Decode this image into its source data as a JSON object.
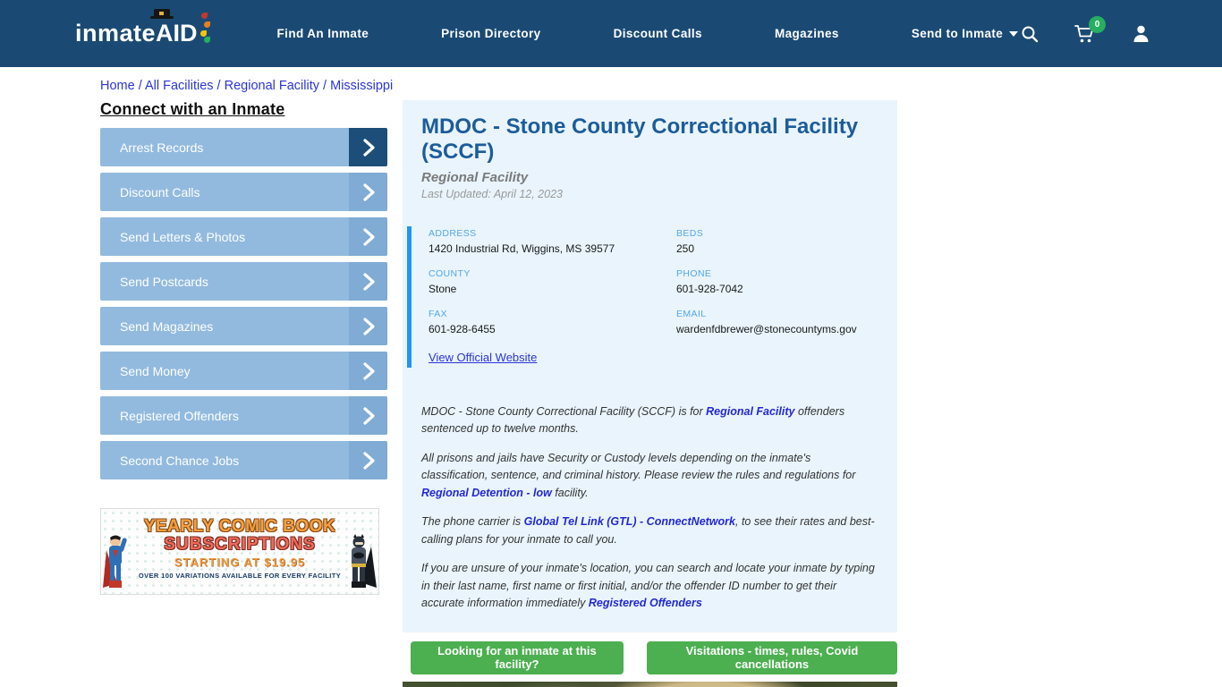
{
  "nav": {
    "logo": {
      "text_main": "inmate",
      "text_accent": "AID"
    },
    "items": [
      {
        "label": "Find An Inmate"
      },
      {
        "label": "Prison Directory"
      },
      {
        "label": "Discount Calls"
      },
      {
        "label": "Magazines"
      }
    ],
    "dropdown": {
      "label": "Send to Inmate"
    },
    "cart_count": "0",
    "icons": [
      "search-icon",
      "cart-icon",
      "user-icon"
    ],
    "colors": {
      "navbar_bg": "#1a4a73",
      "badge_green": "#27ae60"
    }
  },
  "breadcrumb": {
    "separator": "/",
    "items": [
      "Home",
      "All Facilities",
      "Regional Facility",
      "Mississippi"
    ]
  },
  "sidebar": {
    "heading": "Connect with an Inmate",
    "buttons": [
      "Arrest Records",
      "Discount Calls",
      "Send Letters & Photos",
      "Send Postcards",
      "Send Magazines",
      "Send Money",
      "Registered Offenders",
      "Second Chance Jobs"
    ],
    "button_colors": {
      "body": "#92bade",
      "chevron": "#7fabd4",
      "chevron_first": "#1d4e79"
    },
    "ad": {
      "line1": "YEARLY COMIC BOOK",
      "line2": "SUBSCRIPTIONS",
      "line3": "STARTING AT $19.95",
      "line4": "OVER 100 VARIATIONS AVAILABLE FOR EVERY FACILITY"
    }
  },
  "facility": {
    "title": "MDOC - Stone County Correctional Facility (SCCF)",
    "type": "Regional Facility",
    "last_updated": "Last Updated: April 12, 2023",
    "details": [
      {
        "label": "ADDRESS",
        "value": "1420 Industrial Rd, Wiggins, MS 39577"
      },
      {
        "label": "BEDS",
        "value": "250"
      },
      {
        "label": "COUNTY",
        "value": "Stone"
      },
      {
        "label": "PHONE",
        "value": "601-928-7042"
      },
      {
        "label": "FAX",
        "value": "601-928-6455"
      },
      {
        "label": "EMAIL",
        "value": "wardenfdbrewer@stonecountyms.gov"
      }
    ],
    "website_link": "View Official Website",
    "paragraphs": [
      [
        {
          "t": "MDOC - Stone County Correctional Facility (SCCF) is for "
        },
        {
          "t": "Regional Facility",
          "link": true
        },
        {
          "t": " offenders sentenced up to twelve months."
        }
      ],
      [
        {
          "t": "All prisons and jails have Security or Custody levels depending on the inmate's classification, sentence, and criminal history. Please review the rules and regulations for "
        },
        {
          "t": "Regional Detention - low",
          "link": true
        },
        {
          "t": " facility."
        }
      ],
      [
        {
          "t": "The phone carrier is "
        },
        {
          "t": "Global Tel Link (GTL) - ConnectNetwork",
          "link": true
        },
        {
          "t": ", to see their rates and best-calling plans for your inmate to call you."
        }
      ],
      [
        {
          "t": "If you are unsure of your inmate's location, you can search and locate your inmate by typing in their last name, first name or first initial, and/or the offender ID number to get their accurate information immediately "
        },
        {
          "t": "Registered Offenders",
          "link": true
        }
      ]
    ],
    "accent_colors": {
      "panel_border": "#2196f3",
      "title": "#1c5c99",
      "label": "#56a7e8",
      "card_bg": "#e9f4fc"
    }
  },
  "actions": [
    {
      "label": "Looking for an inmate at this facility?"
    },
    {
      "label": "Visitations - times, rules, Covid cancellations"
    }
  ],
  "action_color": "#4caf50"
}
